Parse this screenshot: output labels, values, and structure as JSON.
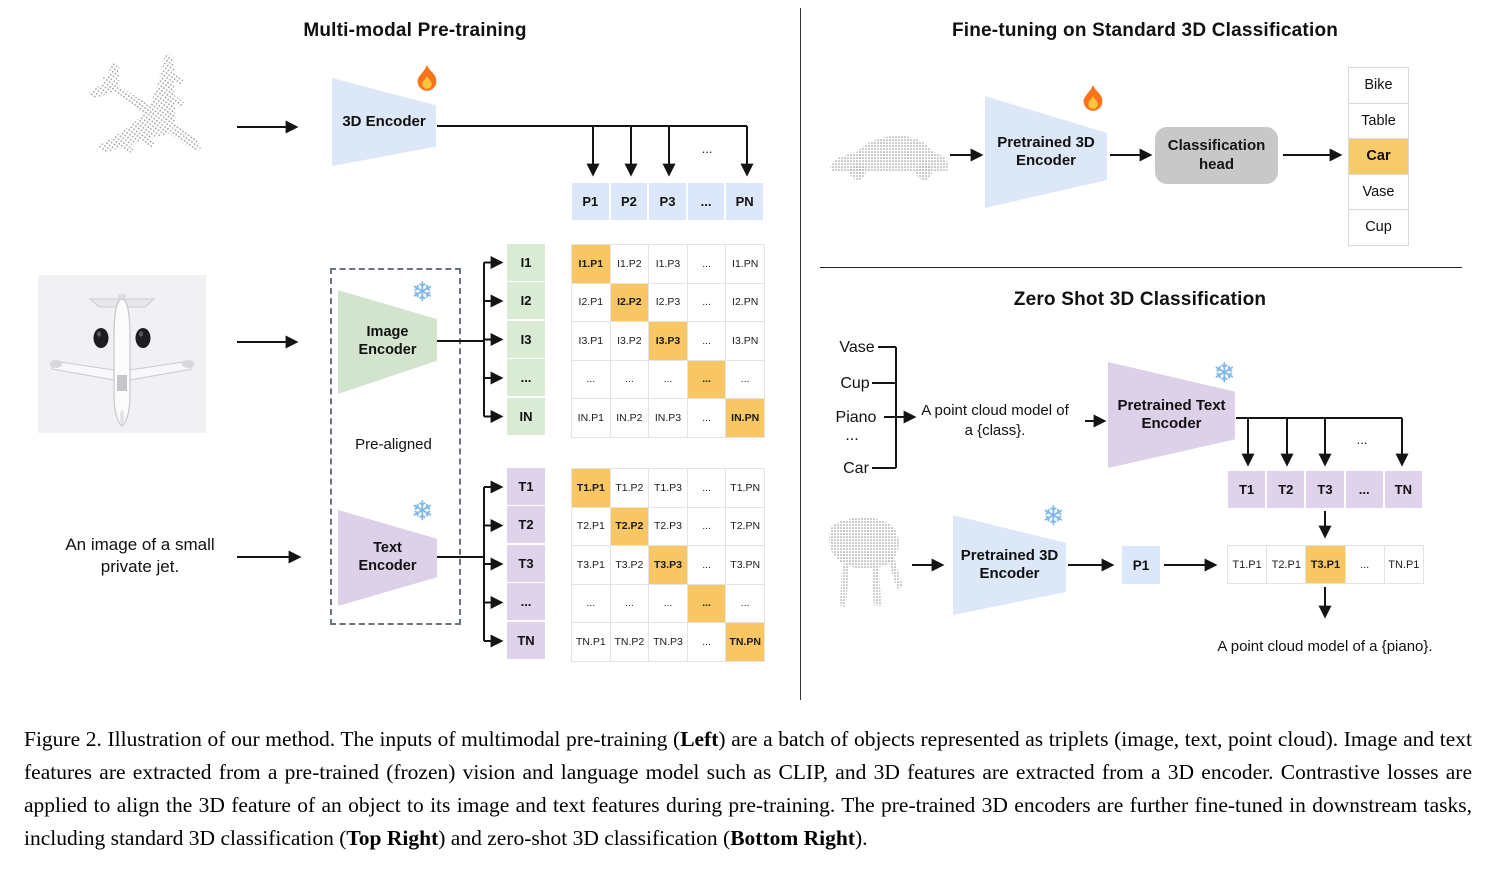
{
  "left": {
    "title": "Multi-modal Pre-training",
    "encoder_3d": "3D Encoder",
    "image_encoder": "Image\nEncoder",
    "text_encoder": "Text\nEncoder",
    "pre_aligned": "Pre-aligned",
    "jet_caption": "An image of a small\nprivate jet.",
    "fan_ellipsis": "...",
    "p_row": [
      "P1",
      "P2",
      "P3",
      "...",
      "PN"
    ],
    "i_labels": [
      "I1",
      "I2",
      "I3",
      "...",
      "IN"
    ],
    "t_labels": [
      "T1",
      "T2",
      "T3",
      "...",
      "TN"
    ],
    "i_matrix": [
      [
        "I1.P1",
        "I1.P2",
        "I1.P3",
        "...",
        "I1.PN"
      ],
      [
        "I2.P1",
        "I2.P2",
        "I2.P3",
        "...",
        "I2.PN"
      ],
      [
        "I3.P1",
        "I3.P2",
        "I3.P3",
        "...",
        "I3.PN"
      ],
      [
        "...",
        "...",
        "...",
        "...",
        "..."
      ],
      [
        "IN.P1",
        "IN.P2",
        "IN.P3",
        "...",
        "IN.PN"
      ]
    ],
    "t_matrix": [
      [
        "T1.P1",
        "T1.P2",
        "T1.P3",
        "...",
        "T1.PN"
      ],
      [
        "T2.P1",
        "T2.P2",
        "T2.P3",
        "...",
        "T2.PN"
      ],
      [
        "T3.P1",
        "T3.P2",
        "T3.P3",
        "...",
        "T3.PN"
      ],
      [
        "...",
        "...",
        "...",
        "...",
        "..."
      ],
      [
        "TN.P1",
        "TN.P2",
        "TN.P3",
        "...",
        "TN.PN"
      ]
    ],
    "matrix_highlight": "diagonal"
  },
  "right": {
    "fine_tune": {
      "title": "Fine-tuning on Standard 3D Classification",
      "encoder": "Pretrained 3D\nEncoder",
      "head": "Classification\nhead",
      "classes": [
        "Bike",
        "Table",
        "Car",
        "Vase",
        "Cup"
      ],
      "highlight_index": 2,
      "highlight_class": "Car"
    },
    "zero_shot": {
      "title": "Zero Shot 3D Classification",
      "classes": [
        "Vase",
        "Cup",
        "Piano",
        "...",
        "Car"
      ],
      "prompt": "A point cloud model of\na {class}.",
      "text_encoder": "Pretrained Text\nEncoder",
      "encoder": "Pretrained 3D\nEncoder",
      "p1": "P1",
      "t_row": [
        "T1",
        "T2",
        "T3",
        "...",
        "TN"
      ],
      "sim_row": [
        "T1.P1",
        "T2.P1",
        "T3.P1",
        "...",
        "TN.P1"
      ],
      "sim_highlight_index": 2,
      "fan_ellipsis": "...",
      "result": "A point cloud model of a {piano}."
    }
  },
  "caption": {
    "segments": [
      {
        "text": "Figure 2. Illustration of our method. The inputs of multimodal pre-training (",
        "bold": false
      },
      {
        "text": "Left",
        "bold": true
      },
      {
        "text": ") are a batch of objects represented as triplets (image, text, point cloud). Image and text features are extracted from a pre-trained (frozen) vision and language model such as CLIP, and 3D features are extracted from a 3D encoder. Contrastive losses are applied to align the 3D feature of an object to its image and text features during pre-training. The pre-trained 3D encoders are further fine-tuned in downstream tasks, including standard 3D classification (",
        "bold": false
      },
      {
        "text": "Top Right",
        "bold": true
      },
      {
        "text": ") and zero-shot 3D classification (",
        "bold": false
      },
      {
        "text": "Bottom Right",
        "bold": true
      },
      {
        "text": ").",
        "bold": false
      }
    ]
  },
  "colors": {
    "highlight_orange": "#F8C662",
    "class_highlight_orange": "#F6CB6C",
    "feature_blue": "#DCE8F9",
    "feature_green": "#D9EAD5",
    "feature_purple": "#DED3EA",
    "encoder_blue": "#DCE7F8",
    "encoder_green": "#D3E4CE",
    "encoder_purple": "#DCD1E9",
    "head_gray": "#C8C8C8"
  },
  "icons": {
    "flame-icon": "🔥",
    "snowflake-icon": "❄"
  }
}
